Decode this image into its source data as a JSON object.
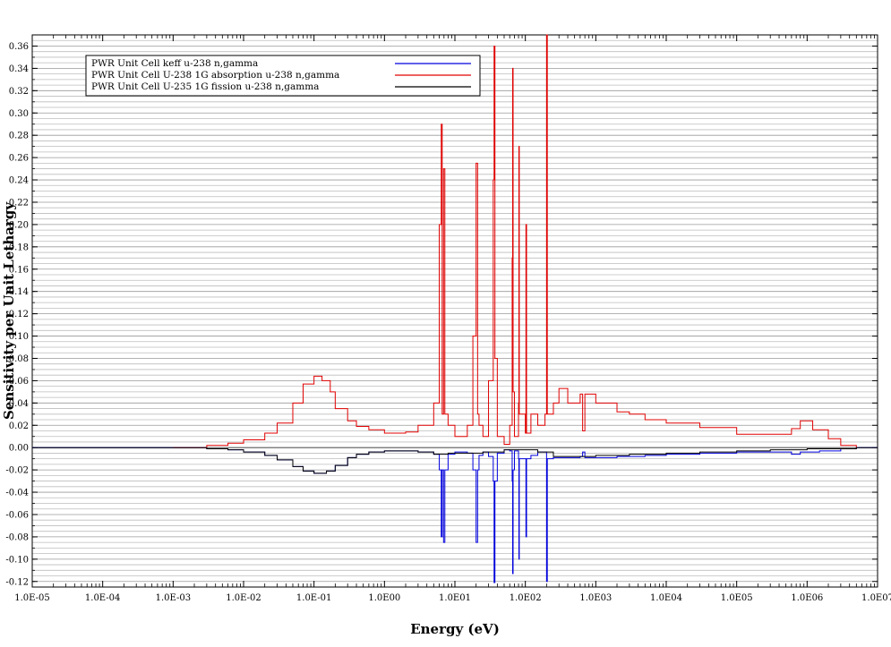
{
  "chart_data": {
    "type": "line",
    "title": "",
    "xlabel": "Energy (eV)",
    "ylabel": "Sensitivity per Unit Lethargy",
    "x_scale": "log",
    "xlim": [
      1e-05,
      10000000.0
    ],
    "ylim": [
      -0.125,
      0.37
    ],
    "grid": "horizontal",
    "legend_position": "top-left",
    "x_tick_labels": [
      "1.0E-05",
      "1.0E-04",
      "1.0E-03",
      "1.0E-02",
      "1.0E-01",
      "1.0E00",
      "1.0E01",
      "1.0E02",
      "1.0E03",
      "1.0E04",
      "1.0E05",
      "1.0E06",
      "1.0E07"
    ],
    "x_tick_values": [
      1e-05,
      0.0001,
      0.001,
      0.01,
      0.1,
      1,
      10,
      100,
      1000,
      10000,
      100000,
      1000000,
      10000000
    ],
    "y_tick_labels": [
      "-0.12",
      "-0.10",
      "-0.08",
      "-0.06",
      "-0.04",
      "-0.02",
      "0.00",
      "0.02",
      "0.04",
      "0.06",
      "0.08",
      "0.10",
      "0.12",
      "0.14",
      "0.16",
      "0.18",
      "0.20",
      "0.22",
      "0.24",
      "0.26",
      "0.28",
      "0.30",
      "0.32",
      "0.34",
      "0.36"
    ],
    "y_tick_values": [
      -0.12,
      -0.1,
      -0.08,
      -0.06,
      -0.04,
      -0.02,
      0.0,
      0.02,
      0.04,
      0.06,
      0.08,
      0.1,
      0.12,
      0.14,
      0.16,
      0.18,
      0.2,
      0.22,
      0.24,
      0.26,
      0.28,
      0.3,
      0.32,
      0.34,
      0.36
    ],
    "series": [
      {
        "name": "PWR Unit Cell keff u-238 n,gamma",
        "color": "#0000dd",
        "points": [
          [
            1e-05,
            0.0
          ],
          [
            0.001,
            0.0
          ],
          [
            0.003,
            -0.001
          ],
          [
            0.006,
            -0.002
          ],
          [
            0.01,
            -0.004
          ],
          [
            0.02,
            -0.007
          ],
          [
            0.03,
            -0.011
          ],
          [
            0.05,
            -0.017
          ],
          [
            0.07,
            -0.021
          ],
          [
            0.1,
            -0.023
          ],
          [
            0.15,
            -0.021
          ],
          [
            0.2,
            -0.016
          ],
          [
            0.3,
            -0.009
          ],
          [
            0.4,
            -0.006
          ],
          [
            0.6,
            -0.004
          ],
          [
            1,
            -0.003
          ],
          [
            2,
            -0.003
          ],
          [
            3,
            -0.004
          ],
          [
            5,
            -0.006
          ],
          [
            6,
            -0.02
          ],
          [
            6.4,
            -0.08
          ],
          [
            6.6,
            -0.02
          ],
          [
            6.9,
            -0.085
          ],
          [
            7.2,
            -0.02
          ],
          [
            8,
            -0.006
          ],
          [
            10,
            -0.004
          ],
          [
            15,
            -0.005
          ],
          [
            18,
            -0.02
          ],
          [
            20,
            -0.085
          ],
          [
            21,
            -0.02
          ],
          [
            22,
            -0.007
          ],
          [
            25,
            -0.004
          ],
          [
            30,
            -0.008
          ],
          [
            35,
            -0.03
          ],
          [
            36,
            -0.121
          ],
          [
            37,
            -0.03
          ],
          [
            40,
            -0.005
          ],
          [
            50,
            -0.002
          ],
          [
            60,
            -0.003
          ],
          [
            65,
            -0.03
          ],
          [
            66,
            -0.113
          ],
          [
            67,
            -0.02
          ],
          [
            70,
            -0.003
          ],
          [
            80,
            -0.01
          ],
          [
            81,
            -0.1
          ],
          [
            82,
            -0.01
          ],
          [
            100,
            -0.01
          ],
          [
            102,
            -0.08
          ],
          [
            104,
            -0.01
          ],
          [
            120,
            -0.007
          ],
          [
            150,
            -0.004
          ],
          [
            190,
            -0.004
          ],
          [
            200,
            -0.12
          ],
          [
            205,
            -0.01
          ],
          [
            250,
            -0.009
          ],
          [
            400,
            -0.009
          ],
          [
            600,
            -0.008
          ],
          [
            650,
            -0.004
          ],
          [
            700,
            -0.009
          ],
          [
            1000,
            -0.009
          ],
          [
            2000,
            -0.008
          ],
          [
            5000,
            -0.007
          ],
          [
            10000.0,
            -0.006
          ],
          [
            30000.0,
            -0.005
          ],
          [
            100000.0,
            -0.004
          ],
          [
            300000.0,
            -0.004
          ],
          [
            600000.0,
            -0.006
          ],
          [
            800000.0,
            -0.004
          ],
          [
            1500000.0,
            -0.003
          ],
          [
            3000000.0,
            -0.001
          ],
          [
            5000000.0,
            0.0
          ],
          [
            10000000.0,
            0.0
          ]
        ]
      },
      {
        "name": "PWR Unit Cell U-238 1G absorption u-238 n,gamma",
        "color": "#e00000",
        "points": [
          [
            0.001,
            0.0
          ],
          [
            0.003,
            0.002
          ],
          [
            0.006,
            0.004
          ],
          [
            0.01,
            0.007
          ],
          [
            0.02,
            0.013
          ],
          [
            0.03,
            0.022
          ],
          [
            0.05,
            0.04
          ],
          [
            0.07,
            0.057
          ],
          [
            0.1,
            0.064
          ],
          [
            0.13,
            0.06
          ],
          [
            0.17,
            0.05
          ],
          [
            0.2,
            0.035
          ],
          [
            0.3,
            0.024
          ],
          [
            0.4,
            0.019
          ],
          [
            0.6,
            0.016
          ],
          [
            1,
            0.013
          ],
          [
            2,
            0.014
          ],
          [
            3,
            0.02
          ],
          [
            5,
            0.04
          ],
          [
            6,
            0.2
          ],
          [
            6.4,
            0.29
          ],
          [
            6.6,
            0.03
          ],
          [
            6.9,
            0.25
          ],
          [
            7.2,
            0.03
          ],
          [
            8,
            0.02
          ],
          [
            10,
            0.01
          ],
          [
            15,
            0.02
          ],
          [
            18,
            0.1
          ],
          [
            20,
            0.255
          ],
          [
            21,
            0.03
          ],
          [
            22,
            0.02
          ],
          [
            25,
            0.01
          ],
          [
            30,
            0.06
          ],
          [
            35,
            0.24
          ],
          [
            36,
            0.36
          ],
          [
            37,
            0.08
          ],
          [
            40,
            0.01
          ],
          [
            50,
            0.003
          ],
          [
            60,
            0.02
          ],
          [
            65,
            0.17
          ],
          [
            66,
            0.34
          ],
          [
            67,
            0.05
          ],
          [
            70,
            0.01
          ],
          [
            80,
            0.04
          ],
          [
            81,
            0.27
          ],
          [
            82,
            0.03
          ],
          [
            100,
            0.013
          ],
          [
            102,
            0.2
          ],
          [
            104,
            0.013
          ],
          [
            120,
            0.03
          ],
          [
            150,
            0.02
          ],
          [
            190,
            0.03
          ],
          [
            200,
            0.37
          ],
          [
            205,
            0.03
          ],
          [
            250,
            0.04
          ],
          [
            300,
            0.053
          ],
          [
            400,
            0.04
          ],
          [
            600,
            0.048
          ],
          [
            650,
            0.015
          ],
          [
            700,
            0.048
          ],
          [
            1000,
            0.04
          ],
          [
            2000,
            0.032
          ],
          [
            3000,
            0.03
          ],
          [
            5000,
            0.025
          ],
          [
            10000.0,
            0.022
          ],
          [
            30000.0,
            0.018
          ],
          [
            100000.0,
            0.012
          ],
          [
            300000.0,
            0.012
          ],
          [
            600000.0,
            0.017
          ],
          [
            800000.0,
            0.024
          ],
          [
            1200000.0,
            0.016
          ],
          [
            2000000.0,
            0.008
          ],
          [
            3000000.0,
            0.002
          ],
          [
            5000000.0,
            0.0
          ]
        ]
      },
      {
        "name": "PWR Unit Cell U-235 1G fission u-238 n,gamma",
        "color": "#000000",
        "points": [
          [
            1e-05,
            0.0
          ],
          [
            0.001,
            0.0
          ],
          [
            0.003,
            -0.001
          ],
          [
            0.006,
            -0.002
          ],
          [
            0.01,
            -0.004
          ],
          [
            0.02,
            -0.007
          ],
          [
            0.03,
            -0.011
          ],
          [
            0.05,
            -0.017
          ],
          [
            0.07,
            -0.021
          ],
          [
            0.1,
            -0.023
          ],
          [
            0.15,
            -0.021
          ],
          [
            0.2,
            -0.016
          ],
          [
            0.3,
            -0.009
          ],
          [
            0.4,
            -0.006
          ],
          [
            0.6,
            -0.004
          ],
          [
            1,
            -0.003
          ],
          [
            2,
            -0.003
          ],
          [
            3,
            -0.004
          ],
          [
            5,
            -0.006
          ],
          [
            8,
            -0.005
          ],
          [
            15,
            -0.005
          ],
          [
            25,
            -0.004
          ],
          [
            50,
            -0.002
          ],
          [
            150,
            -0.004
          ],
          [
            250,
            -0.008
          ],
          [
            400,
            -0.008
          ],
          [
            1000,
            -0.007
          ],
          [
            3000,
            -0.006
          ],
          [
            10000.0,
            -0.005
          ],
          [
            30000.0,
            -0.004
          ],
          [
            100000.0,
            -0.003
          ],
          [
            300000.0,
            -0.002
          ],
          [
            1000000.0,
            -0.001
          ],
          [
            5000000.0,
            0.0
          ],
          [
            10000000.0,
            0.0
          ]
        ]
      }
    ]
  }
}
